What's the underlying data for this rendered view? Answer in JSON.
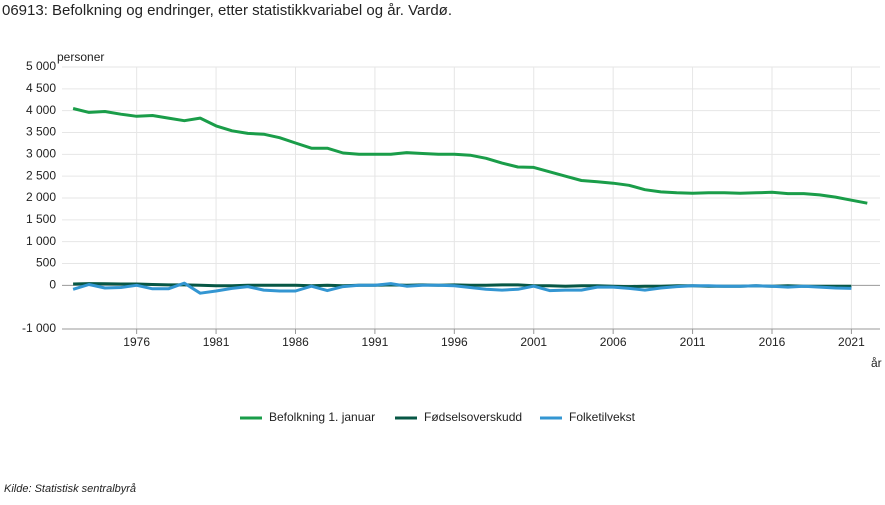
{
  "chart_data": {
    "type": "line",
    "title": "06913: Befolkning og endringer, etter statistikkvariabel og år. Vardø.",
    "y_label": "personer",
    "x_label": "år",
    "source": "Kilde:  Statistisk sentralbyrå",
    "x": [
      1972,
      1973,
      1974,
      1975,
      1976,
      1977,
      1978,
      1979,
      1980,
      1981,
      1982,
      1983,
      1984,
      1985,
      1986,
      1987,
      1988,
      1989,
      1990,
      1991,
      1992,
      1993,
      1994,
      1995,
      1996,
      1997,
      1998,
      1999,
      2000,
      2001,
      2002,
      2003,
      2004,
      2005,
      2006,
      2007,
      2008,
      2009,
      2010,
      2011,
      2012,
      2013,
      2014,
      2015,
      2016,
      2017,
      2018,
      2019,
      2020,
      2021,
      2022
    ],
    "xlim": [
      1971.3,
      2022.8
    ],
    "xticks": [
      1976,
      1981,
      1986,
      1991,
      1996,
      2001,
      2006,
      2011,
      2016,
      2021
    ],
    "ylim": [
      -1000,
      5000
    ],
    "yticks": [
      {
        "value": -1000,
        "label": "-1 000"
      },
      0,
      500,
      {
        "value": 1000,
        "label": "1 000"
      },
      {
        "value": 1500,
        "label": "1 500"
      },
      {
        "value": 2000,
        "label": "2 000"
      },
      {
        "value": 2500,
        "label": "2 500"
      },
      {
        "value": 3000,
        "label": "3 000"
      },
      {
        "value": 3500,
        "label": "3 500"
      },
      {
        "value": 4000,
        "label": "4 000"
      },
      {
        "value": 4500,
        "label": "4 500"
      },
      {
        "value": 5000,
        "label": "5 000"
      }
    ],
    "grid": true,
    "legend": "bottom",
    "series": [
      {
        "name": "Befolkning 1. januar",
        "color": "#1a9d49",
        "values": [
          4050,
          3960,
          3980,
          3920,
          3870,
          3890,
          3830,
          3770,
          3830,
          3650,
          3540,
          3480,
          3460,
          3380,
          3260,
          3140,
          3140,
          3030,
          3000,
          3000,
          3000,
          3040,
          3020,
          3000,
          3000,
          2980,
          2910,
          2800,
          2710,
          2700,
          2600,
          2500,
          2400,
          2370,
          2340,
          2290,
          2190,
          2140,
          2120,
          2110,
          2120,
          2120,
          2110,
          2120,
          2130,
          2100,
          2100,
          2070,
          2020,
          1950,
          1880
        ]
      },
      {
        "name": "Fødselsoverskudd",
        "color": "#075745",
        "values": [
          30,
          40,
          35,
          30,
          30,
          20,
          10,
          10,
          0,
          -10,
          -10,
          0,
          0,
          0,
          0,
          -10,
          0,
          -10,
          0,
          0,
          10,
          0,
          10,
          0,
          10,
          0,
          0,
          10,
          10,
          -10,
          -10,
          -20,
          -10,
          -10,
          -20,
          -30,
          -20,
          -20,
          -10,
          -10,
          -20,
          -20,
          -20,
          -10,
          -20,
          -10,
          -20,
          -20,
          -20,
          -20,
          null
        ]
      },
      {
        "name": "Folketilvekst",
        "color": "#3396d2",
        "values": [
          -90,
          20,
          -60,
          -50,
          0,
          -80,
          -80,
          50,
          -180,
          -130,
          -70,
          -30,
          -110,
          -130,
          -130,
          -20,
          -120,
          -30,
          0,
          0,
          40,
          -20,
          0,
          0,
          -10,
          -50,
          -90,
          -110,
          -90,
          -20,
          -120,
          -110,
          -110,
          -40,
          -40,
          -70,
          -110,
          -60,
          -30,
          -10,
          -10,
          -20,
          -20,
          -10,
          -20,
          -40,
          -20,
          -40,
          -60,
          -70,
          null
        ]
      }
    ]
  }
}
